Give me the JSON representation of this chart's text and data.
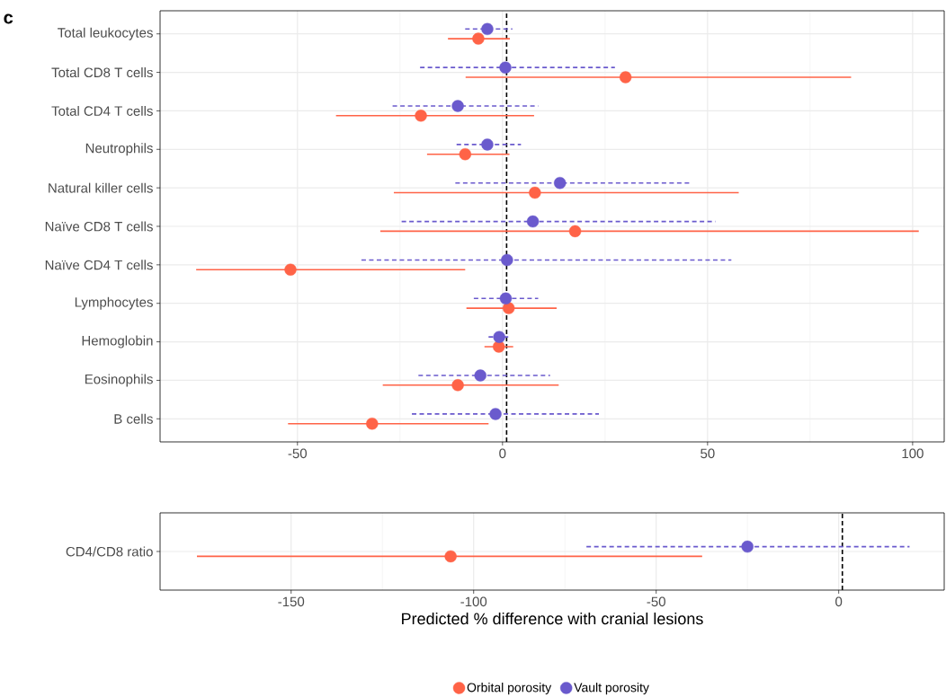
{
  "chart_data": [
    {
      "type": "scatter",
      "orientation": "horizontal",
      "annotations": [
        "c"
      ],
      "categories": [
        "Total leukocytes",
        "Total CD8 T cells",
        "Total CD4 T cells",
        "Neutrophils",
        "Natural killer cells",
        "Naïve CD8 T cells",
        "Naïve CD4 T cells",
        "Lymphocytes",
        "Hemoglobin",
        "Eosinophils",
        "B cells"
      ],
      "series": [
        {
          "color": "#ff6347",
          "line_style": "solid",
          "values": [
            -5.9,
            30.0,
            -19.9,
            -9.1,
            7.9,
            17.7,
            -51.7,
            1.5,
            -0.9,
            -10.9,
            -31.8
          ],
          "errors": [
            [
              -13.3,
              1.8
            ],
            [
              -9.0,
              85.0
            ],
            [
              -40.6,
              7.7
            ],
            [
              -18.4,
              1.7
            ],
            [
              -26.5,
              57.6
            ],
            [
              -29.8,
              101.5
            ],
            [
              -74.7,
              -9.1
            ],
            [
              -8.8,
              13.2
            ],
            [
              -4.4,
              2.6
            ],
            [
              -29.2,
              13.7
            ],
            [
              -52.3,
              -3.4
            ]
          ]
        },
        {
          "color": "#6a5acd",
          "line_style": "dashed",
          "values": [
            -3.7,
            0.7,
            -10.9,
            -3.7,
            14.0,
            7.4,
            1.1,
            0.8,
            -0.8,
            -5.4,
            -1.7
          ],
          "errors": [
            [
              -9.1,
              2.4
            ],
            [
              -20.1,
              27.4
            ],
            [
              -26.8,
              8.7
            ],
            [
              -11.2,
              4.5
            ],
            [
              -11.5,
              45.7
            ],
            [
              -24.6,
              51.9
            ],
            [
              -34.4,
              55.8
            ],
            [
              -7.0,
              8.7
            ],
            [
              -3.4,
              1.4
            ],
            [
              -20.5,
              11.6
            ],
            [
              -22.1,
              23.5
            ]
          ]
        }
      ],
      "xlim": [
        -83.5,
        107.7
      ],
      "xticks": [
        -50,
        0,
        50,
        100
      ],
      "grid": true,
      "marker": "circle",
      "ref_lines": [
        {
          "axis": "x",
          "value": 1,
          "color": "#000000",
          "line_style": "dashed"
        }
      ]
    },
    {
      "type": "scatter",
      "orientation": "horizontal",
      "xlabel": "Predicted % difference with cranial lesions",
      "categories": [
        "CD4/CD8 ratio"
      ],
      "series": [
        {
          "name": "Orbital porosity",
          "color": "#ff6347",
          "line_style": "solid",
          "values": [
            -106.3
          ],
          "errors": [
            [
              -175.8,
              -37.4
            ]
          ]
        },
        {
          "name": "Vault porosity",
          "color": "#6a5acd",
          "line_style": "dashed",
          "values": [
            -25.0
          ],
          "errors": [
            [
              -69.1,
              19.4
            ]
          ]
        }
      ],
      "xlim": [
        -185.9,
        28.9
      ],
      "xticks": [
        -150,
        -100,
        -50,
        0
      ],
      "grid": true,
      "marker": "circle",
      "legend": "bottom",
      "ref_lines": [
        {
          "axis": "x",
          "value": 1,
          "color": "#000000",
          "line_style": "dashed"
        }
      ]
    }
  ]
}
